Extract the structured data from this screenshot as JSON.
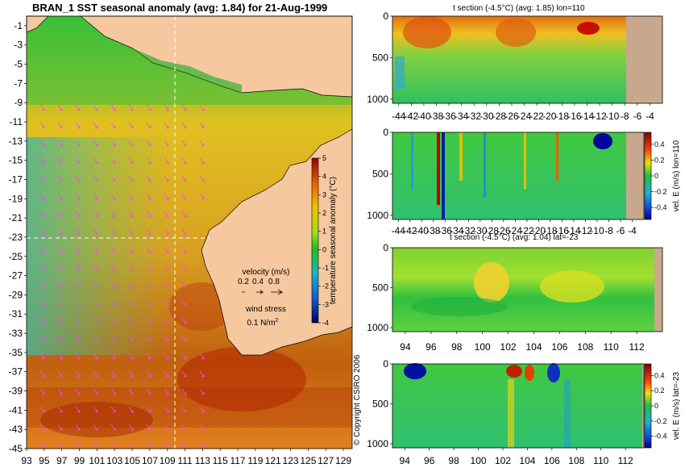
{
  "chart_data": [
    {
      "id": "map",
      "type": "heatmap",
      "title": "BRAN_1  SST seasonal anomaly (avg: 1.84) for 21-Aug-1999",
      "xticks": [
        "93",
        "95",
        "97",
        "99",
        "101",
        "103",
        "105",
        "107",
        "109",
        "111",
        "113",
        "115",
        "117",
        "119",
        "121",
        "123",
        "125",
        "127",
        "129"
      ],
      "yticks": [
        "-1",
        "-3",
        "-5",
        "-7",
        "-9",
        "-11",
        "-13",
        "-15",
        "-17",
        "-19",
        "-21",
        "-23",
        "-25",
        "-27",
        "-29",
        "-31",
        "-33",
        "-35",
        "-37",
        "-39",
        "-41",
        "-43",
        "-45"
      ],
      "xlim": [
        93,
        130
      ],
      "ylim": [
        -45,
        0
      ],
      "section_lon": 110,
      "section_lat": -23,
      "colorbar": {
        "label": "temperature seasonal anomaly (°C)",
        "ticks": [
          "5",
          "4",
          "3",
          "2",
          "1",
          "0",
          "-1",
          "-2",
          "-3",
          "-4"
        ],
        "range": [
          -4,
          5
        ]
      },
      "legend": {
        "velocity_title": "velocity (m/s)",
        "velocity_values": [
          "0.2",
          "0.4",
          "0.8"
        ],
        "wind_title": "wind stress",
        "wind_value": "0.1 N/m",
        "wind_exp": "2"
      },
      "copyright": "© Copyright CSIRO 2006"
    },
    {
      "id": "t-lon",
      "type": "heatmap",
      "title": "t section (-4.5°C) (avg: 1.85) lon=110",
      "xticks": [
        "-44",
        "-42",
        "-40",
        "-38",
        "-36",
        "-34",
        "-32",
        "-30",
        "-28",
        "-26",
        "-24",
        "-22",
        "-20",
        "-18",
        "-16",
        "-14",
        "-12",
        "-10",
        "-8",
        "-6",
        "-4"
      ],
      "yticks": [
        "0",
        "500",
        "1000"
      ],
      "xlim": [
        -45,
        -2
      ],
      "ylim": [
        1050,
        0
      ]
    },
    {
      "id": "v-lon",
      "type": "heatmap",
      "xticks": [
        "-44",
        "-42",
        "-40",
        "-38",
        "-36",
        "-34",
        "-32",
        "-30",
        "-28",
        "-26",
        "-24",
        "-22",
        "-20",
        "-18",
        "-16",
        "-14",
        "-12",
        "-10",
        "-8",
        "-6",
        "-4"
      ],
      "yticks": [
        "0",
        "500",
        "1000"
      ],
      "xlim": [
        -45,
        -2
      ],
      "ylim": [
        1050,
        0
      ],
      "colorbar": {
        "label": "vel. E (m/s) lon=110",
        "ticks": [
          "0.4",
          "0.2",
          "0",
          "-0.2",
          "-0.4"
        ],
        "range": [
          -0.5,
          0.5
        ]
      }
    },
    {
      "id": "t-lat",
      "type": "heatmap",
      "title": "t section (-4.5°C) (avg: 1.04) lat=-23",
      "xticks": [
        "94",
        "96",
        "98",
        "100",
        "102",
        "104",
        "106",
        "108",
        "110",
        "112"
      ],
      "yticks": [
        "0",
        "500",
        "1000"
      ],
      "xlim": [
        93,
        114
      ],
      "ylim": [
        1050,
        0
      ]
    },
    {
      "id": "v-lat",
      "type": "heatmap",
      "xticks": [
        "94",
        "96",
        "98",
        "100",
        "102",
        "104",
        "106",
        "108",
        "110",
        "112"
      ],
      "yticks": [
        "0",
        "500",
        "1000"
      ],
      "xlim": [
        93,
        113.5
      ],
      "ylim": [
        1050,
        0
      ],
      "colorbar": {
        "label": "vel. E (m/s) lat=-23",
        "ticks": [
          "0.4",
          "0.2",
          "0",
          "-0.2",
          "-0.4"
        ],
        "range": [
          -0.5,
          0.5
        ]
      }
    }
  ],
  "colors": {
    "land": "#f5c8a0",
    "section_bg": "#c8a88c",
    "arrow": "#ff40ff",
    "marker_line": "#ffffff"
  }
}
